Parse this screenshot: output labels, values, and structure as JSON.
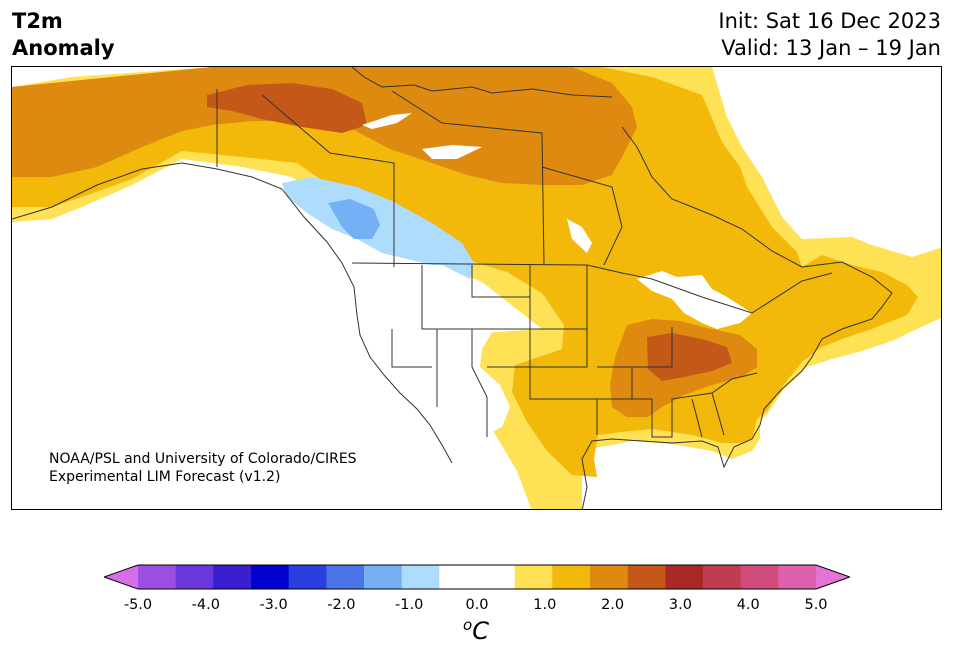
{
  "header": {
    "title_line1": "T2m",
    "title_line2": "Anomaly",
    "init": "Init: Sat 16 Dec 2023",
    "valid": "Valid: 13 Jan – 19 Jan"
  },
  "credit": {
    "line1": "NOAA/PSL and University of Colorado/CIRES",
    "line2": "Experimental LIM Forecast (v1.2)"
  },
  "colorbar": {
    "unit_sup": "o",
    "unit": "C",
    "ticks": [
      "-5.0",
      "-4.0",
      "-3.0",
      "-2.0",
      "-1.0",
      "0.0",
      "1.0",
      "2.0",
      "3.0",
      "4.0",
      "5.0"
    ],
    "colors": [
      "#d66ee8",
      "#9b4fe0",
      "#6a38dc",
      "#3a1fd0",
      "#0000d0",
      "#2a3fe0",
      "#4a73e6",
      "#76b0f4",
      "#aedcfc",
      "#ffffff",
      "#ffffff",
      "#ffe155",
      "#f2b90b",
      "#de8a10",
      "#c45818",
      "#aa2828",
      "#c03c4e",
      "#d04c7c",
      "#dc60ac",
      "#e474d6"
    ]
  },
  "legend_colors": {
    "cool_light": "#aedcfc",
    "cool_medium": "#76b0f4",
    "warm_light": "#ffe155",
    "warm_medium": "#f2b90b",
    "warm_strong": "#de8a10",
    "warm_very_strong": "#c45818"
  }
}
